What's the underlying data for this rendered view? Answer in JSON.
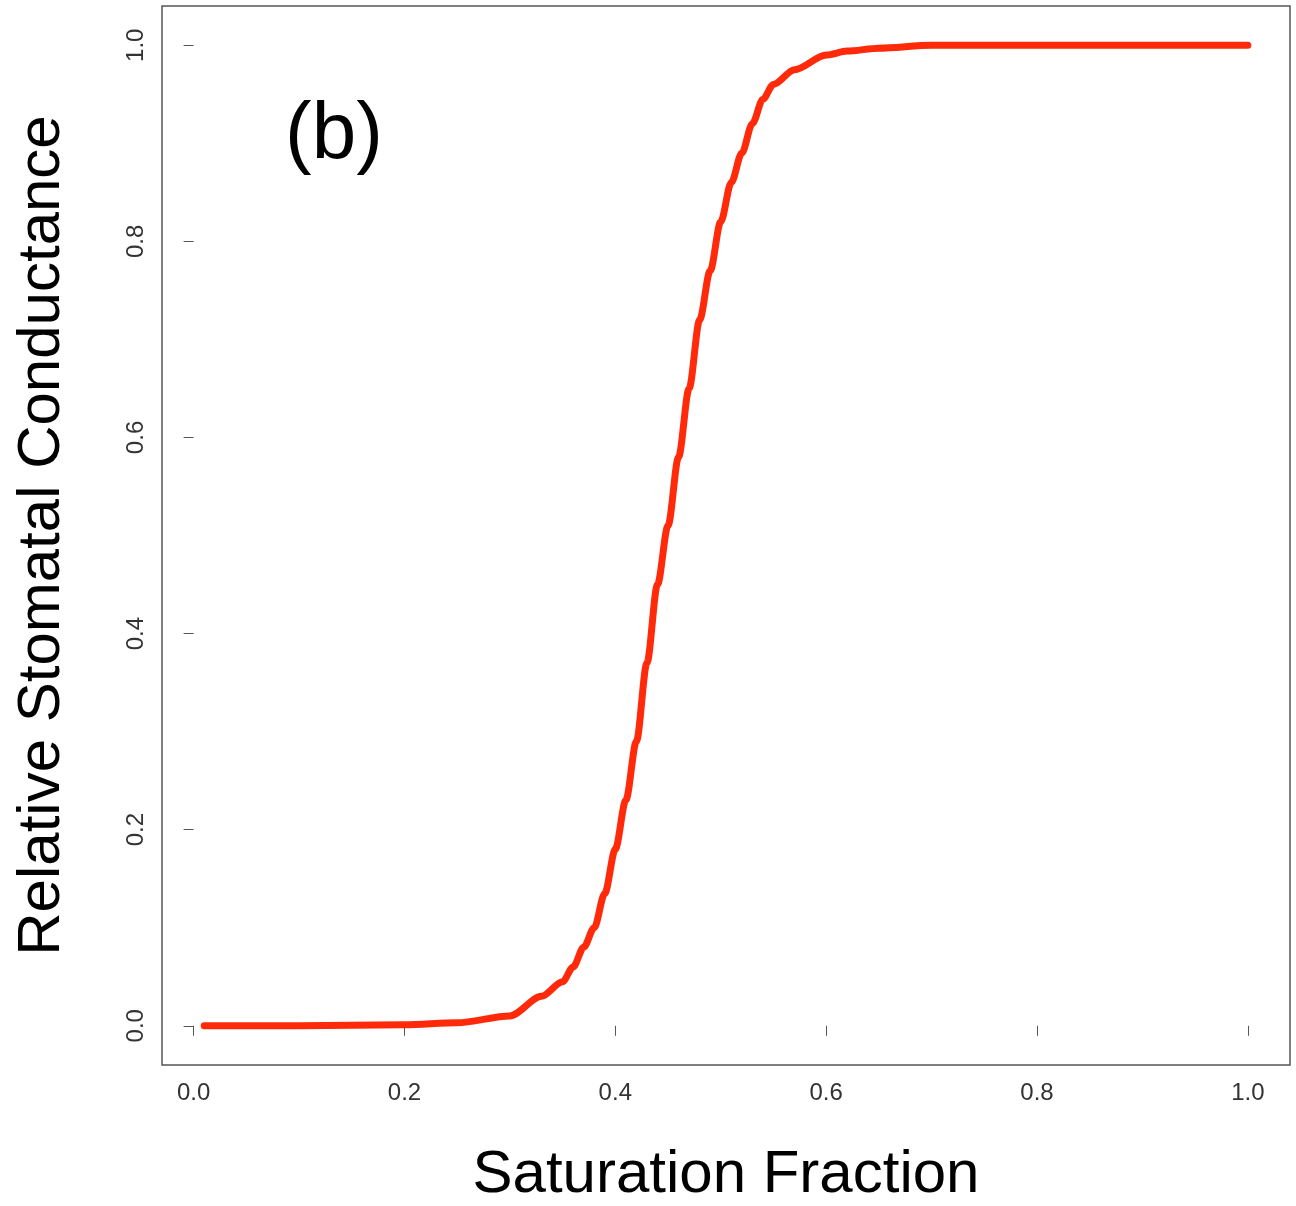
{
  "chart_data": {
    "type": "line",
    "xlabel": "Saturation Fraction",
    "ylabel": "Relative Stomatal Conductance",
    "annotations": [
      "(b)"
    ],
    "x": [
      0.01,
      0.1,
      0.2,
      0.25,
      0.3,
      0.33,
      0.35,
      0.36,
      0.37,
      0.38,
      0.39,
      0.4,
      0.41,
      0.42,
      0.43,
      0.44,
      0.45,
      0.46,
      0.47,
      0.48,
      0.49,
      0.5,
      0.51,
      0.52,
      0.53,
      0.54,
      0.55,
      0.57,
      0.6,
      0.62,
      0.65,
      0.7,
      0.8,
      0.9,
      1.0
    ],
    "series": [
      {
        "color": "#ff2a0a",
        "values": [
          0,
          0,
          0.001,
          0.003,
          0.01,
          0.03,
          0.045,
          0.06,
          0.08,
          0.1,
          0.135,
          0.18,
          0.23,
          0.29,
          0.37,
          0.45,
          0.51,
          0.58,
          0.65,
          0.72,
          0.77,
          0.82,
          0.86,
          0.89,
          0.92,
          0.945,
          0.96,
          0.975,
          0.99,
          0.994,
          0.997,
          1.0,
          1.0,
          1.0,
          1.0
        ]
      }
    ],
    "xlim": [
      -0.03,
      1.04
    ],
    "ylim": [
      -0.04,
      1.04
    ],
    "xticks": [
      {
        "value": 0,
        "label": "0.0"
      },
      {
        "value": 0.2,
        "label": "0.2"
      },
      {
        "value": 0.4,
        "label": "0.4"
      },
      {
        "value": 0.6,
        "label": "0.6"
      },
      {
        "value": 0.8,
        "label": "0.8"
      },
      {
        "value": 1,
        "label": "1.0"
      }
    ],
    "yticks": [
      {
        "value": 0,
        "label": "0.0"
      },
      {
        "value": 0.2,
        "label": "0.2"
      },
      {
        "value": 0.4,
        "label": "0.4"
      },
      {
        "value": 0.6,
        "label": "0.6"
      },
      {
        "value": 0.8,
        "label": "0.8"
      },
      {
        "value": 1,
        "label": "1.0"
      }
    ],
    "grid": false,
    "marker": "none",
    "line_style": "solid"
  }
}
